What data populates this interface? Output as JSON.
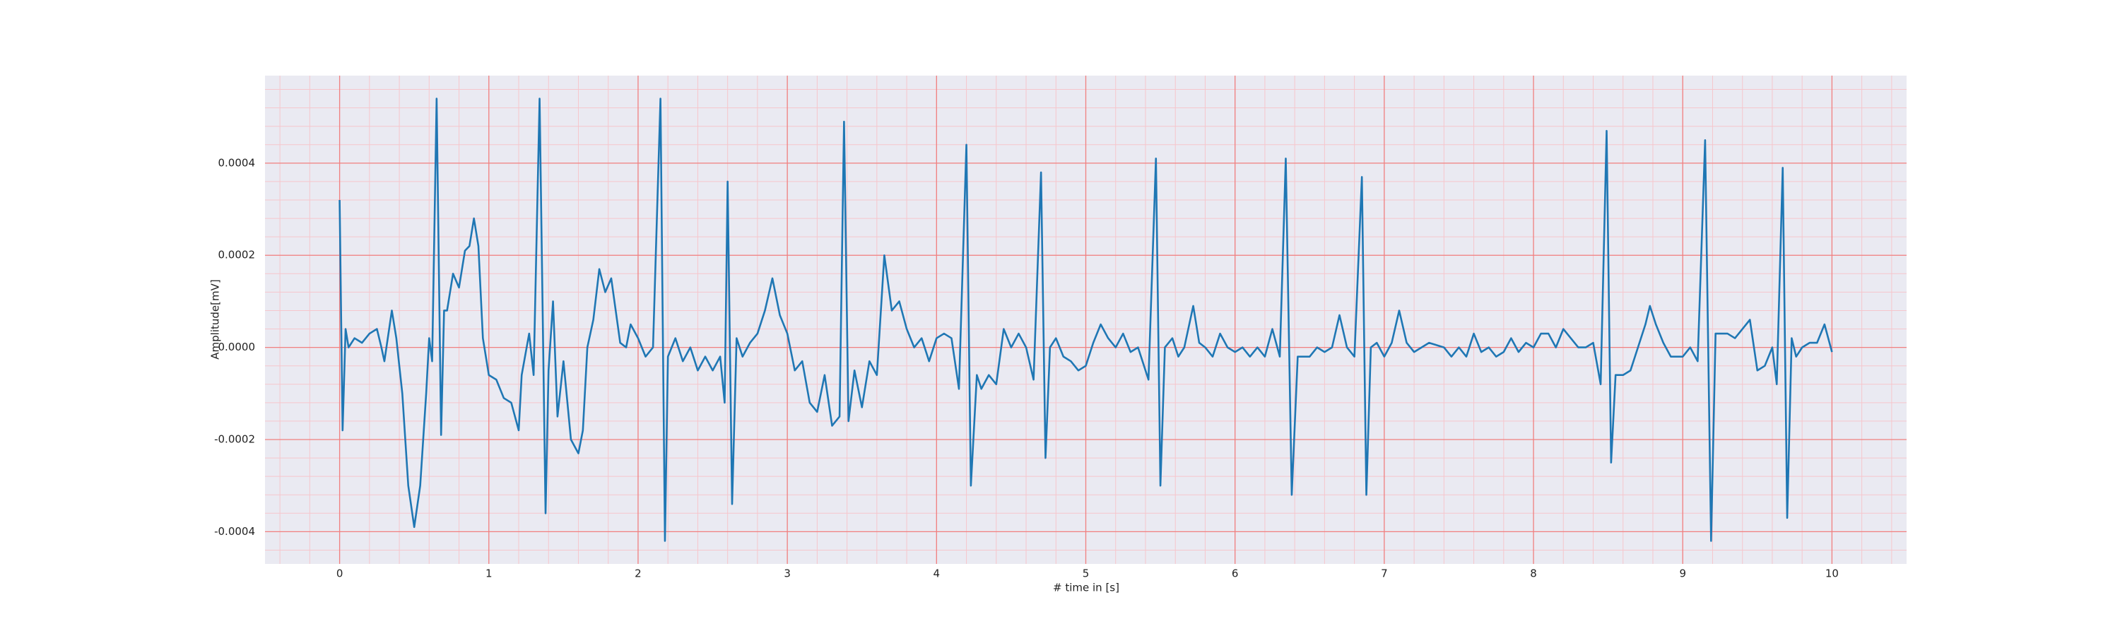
{
  "chart_data": {
    "type": "line",
    "xlabel": "# time in [s]",
    "ylabel": "Amplitude[mV]",
    "x": [
      0,
      0.02,
      0.04,
      0.06,
      0.1,
      0.15,
      0.2,
      0.25,
      0.28,
      0.3,
      0.35,
      0.38,
      0.42,
      0.46,
      0.5,
      0.54,
      0.58,
      0.6,
      0.62,
      0.65,
      0.68,
      0.7,
      0.72,
      0.76,
      0.8,
      0.84,
      0.87,
      0.9,
      0.93,
      0.96,
      1.0,
      1.05,
      1.1,
      1.15,
      1.2,
      1.22,
      1.27,
      1.3,
      1.34,
      1.38,
      1.4,
      1.43,
      1.46,
      1.5,
      1.55,
      1.6,
      1.63,
      1.66,
      1.7,
      1.74,
      1.78,
      1.82,
      1.85,
      1.88,
      1.92,
      1.95,
      2.0,
      2.05,
      2.1,
      2.15,
      2.18,
      2.2,
      2.25,
      2.3,
      2.35,
      2.4,
      2.45,
      2.5,
      2.55,
      2.58,
      2.6,
      2.63,
      2.66,
      2.7,
      2.75,
      2.8,
      2.85,
      2.9,
      2.95,
      3.0,
      3.05,
      3.1,
      3.15,
      3.2,
      3.25,
      3.3,
      3.35,
      3.38,
      3.41,
      3.45,
      3.5,
      3.55,
      3.6,
      3.65,
      3.7,
      3.75,
      3.8,
      3.85,
      3.9,
      3.95,
      4.0,
      4.05,
      4.1,
      4.15,
      4.2,
      4.23,
      4.27,
      4.3,
      4.35,
      4.4,
      4.45,
      4.5,
      4.55,
      4.6,
      4.65,
      4.7,
      4.73,
      4.76,
      4.8,
      4.85,
      4.9,
      4.95,
      5.0,
      5.05,
      5.1,
      5.15,
      5.2,
      5.25,
      5.3,
      5.35,
      5.42,
      5.47,
      5.5,
      5.53,
      5.58,
      5.62,
      5.66,
      5.72,
      5.76,
      5.8,
      5.85,
      5.9,
      5.95,
      6.0,
      6.05,
      6.1,
      6.15,
      6.2,
      6.25,
      6.3,
      6.34,
      6.38,
      6.42,
      6.5,
      6.55,
      6.6,
      6.65,
      6.7,
      6.75,
      6.8,
      6.85,
      6.88,
      6.91,
      6.95,
      7.0,
      7.05,
      7.1,
      7.15,
      7.2,
      7.3,
      7.4,
      7.45,
      7.5,
      7.55,
      7.6,
      7.65,
      7.7,
      7.75,
      7.8,
      7.85,
      7.9,
      7.95,
      8.0,
      8.05,
      8.1,
      8.15,
      8.2,
      8.25,
      8.3,
      8.35,
      8.4,
      8.45,
      8.49,
      8.52,
      8.55,
      8.6,
      8.65,
      8.7,
      8.75,
      8.78,
      8.82,
      8.87,
      8.92,
      9.0,
      9.05,
      9.1,
      9.15,
      9.19,
      9.22,
      9.3,
      9.35,
      9.4,
      9.45,
      9.5,
      9.55,
      9.6,
      9.63,
      9.67,
      9.7,
      9.73,
      9.76,
      9.8,
      9.85,
      9.9,
      9.95,
      10.0
    ],
    "series": [
      {
        "color": "#1f77b4",
        "values": [
          0.00032,
          -0.00018,
          4e-05,
          0,
          2e-05,
          1e-05,
          3e-05,
          4e-05,
          0,
          -3e-05,
          8e-05,
          2e-05,
          -0.0001,
          -0.0003,
          -0.00039,
          -0.0003,
          -0.0001,
          2e-05,
          -3e-05,
          0.00054,
          -0.00019,
          8e-05,
          8e-05,
          0.00016,
          0.00013,
          0.00021,
          0.00022,
          0.00028,
          0.00022,
          2e-05,
          -6e-05,
          -7e-05,
          -0.00011,
          -0.00012,
          -0.00018,
          -6e-05,
          3e-05,
          -6e-05,
          0.00054,
          -0.00036,
          -5e-05,
          0.0001,
          -0.00015,
          -3e-05,
          -0.0002,
          -0.00023,
          -0.00018,
          0,
          6e-05,
          0.00017,
          0.00012,
          0.00015,
          8e-05,
          1e-05,
          0,
          5e-05,
          2e-05,
          -2e-05,
          0,
          0.00054,
          -0.00042,
          -2e-05,
          2e-05,
          -3e-05,
          0,
          -5e-05,
          -2e-05,
          -5e-05,
          -2e-05,
          -0.00012,
          0.00036,
          -0.00034,
          2e-05,
          -2e-05,
          1e-05,
          3e-05,
          8e-05,
          0.00015,
          7e-05,
          3e-05,
          -5e-05,
          -3e-05,
          -0.00012,
          -0.00014,
          -6e-05,
          -0.00017,
          -0.00015,
          0.00049,
          -0.00016,
          -5e-05,
          -0.00013,
          -3e-05,
          -6e-05,
          0.0002,
          8e-05,
          0.0001,
          4e-05,
          0,
          2e-05,
          -3e-05,
          2e-05,
          3e-05,
          2e-05,
          -9e-05,
          0.00044,
          -0.0003,
          -6e-05,
          -9e-05,
          -6e-05,
          -8e-05,
          4e-05,
          0,
          3e-05,
          0,
          -7e-05,
          0.00038,
          -0.00024,
          0,
          2e-05,
          -2e-05,
          -3e-05,
          -5e-05,
          -4e-05,
          1e-05,
          5e-05,
          2e-05,
          0,
          3e-05,
          -1e-05,
          0,
          -7e-05,
          0.00041,
          -0.0003,
          0,
          2e-05,
          -2e-05,
          0,
          9e-05,
          1e-05,
          0,
          -2e-05,
          3e-05,
          0,
          -1e-05,
          0,
          -2e-05,
          0,
          -2e-05,
          4e-05,
          -2e-05,
          0.00041,
          -0.00032,
          -2e-05,
          -2e-05,
          0,
          -1e-05,
          0,
          7e-05,
          0,
          -2e-05,
          0.00037,
          -0.00032,
          0,
          1e-05,
          -2e-05,
          1e-05,
          8e-05,
          1e-05,
          -1e-05,
          1e-05,
          0,
          -2e-05,
          0,
          -2e-05,
          3e-05,
          -1e-05,
          0,
          -2e-05,
          -1e-05,
          2e-05,
          -1e-05,
          1e-05,
          0,
          3e-05,
          3e-05,
          0,
          4e-05,
          2e-05,
          0,
          0,
          1e-05,
          -8e-05,
          0.00047,
          -0.00025,
          -6e-05,
          -6e-05,
          -5e-05,
          0,
          5e-05,
          9e-05,
          5e-05,
          1e-05,
          -2e-05,
          -2e-05,
          0,
          -3e-05,
          0.00045,
          -0.00042,
          3e-05,
          3e-05,
          2e-05,
          4e-05,
          6e-05,
          -5e-05,
          -4e-05,
          0,
          -8e-05,
          0.00039,
          -0.00037,
          2e-05,
          -2e-05,
          0,
          1e-05,
          1e-05,
          5e-05,
          -1e-05
        ]
      }
    ],
    "xlim": [
      -0.5,
      10.5
    ],
    "xticks": [
      0,
      1,
      2,
      3,
      4,
      5,
      6,
      7,
      8,
      9,
      10
    ],
    "ylim": [
      -0.00047,
      0.00059
    ],
    "yticks": [
      -0.0004,
      -0.0002,
      {
        "value": 0,
        "label": "0.0000"
      },
      0.0002,
      0.0004
    ],
    "background": "#eaeaf2",
    "grid": true,
    "grid_color": "#f08080",
    "minor_grid": true,
    "minor_grid_color": "#f6c6cc"
  }
}
